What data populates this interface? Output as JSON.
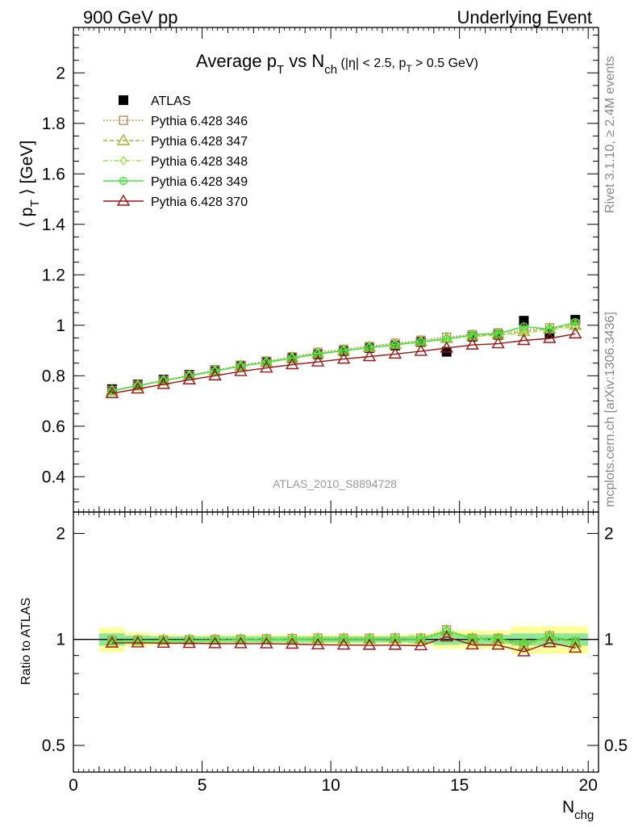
{
  "header": {
    "left": "900 GeV pp",
    "right": "Underlying Event"
  },
  "side_labels": {
    "rivet": "Rivet 3.1.10, ≥ 2.4M events",
    "source": "mcplots.cern.ch [arXiv:1306.3436]"
  },
  "chart_data": [
    {
      "type": "line",
      "panel": "main",
      "title": {
        "prefix": "Average p",
        "sub1": "T",
        "mid": " vs N",
        "sub2": "ch",
        "cut_open": " (|η| < 2.5, p",
        "cut_sub": "T",
        "cut_close": " > 0.5 GeV)"
      },
      "ylabel": {
        "left": "⟨ p",
        "sub": "T",
        "right": " ⟩ [GeV]"
      },
      "xlim": [
        0,
        20.4
      ],
      "ylim": [
        0.26,
        2.18
      ],
      "yticks": [
        0.4,
        0.6,
        0.8,
        1,
        1.2,
        1.4,
        1.6,
        1.8,
        2
      ],
      "ytick_labels": [
        "0.4",
        "0.6",
        "0.8",
        "1",
        "1.2",
        "1.4",
        "1.6",
        "1.8",
        "2"
      ],
      "watermark": "ATLAS_2010_S8894728",
      "legend_position": "top-left",
      "x": [
        1.5,
        2.5,
        3.5,
        4.5,
        5.5,
        6.5,
        7.5,
        8.5,
        9.5,
        10.5,
        11.5,
        12.5,
        13.5,
        14.5,
        15.5,
        16.5,
        17.5,
        18.5,
        19.5
      ],
      "series": [
        {
          "name": "ATLAS",
          "marker": "filled-square",
          "line": "none",
          "color": "#000000",
          "values": [
            0.747,
            0.765,
            0.785,
            0.804,
            0.822,
            0.84,
            0.855,
            0.87,
            0.885,
            0.898,
            0.91,
            0.92,
            0.934,
            0.895,
            0.955,
            0.962,
            1.018,
            0.968,
            1.022
          ]
        },
        {
          "name": "Pythia 6.428 346",
          "marker": "open-square",
          "line": "dotted",
          "color": "#b8884e",
          "values": [
            0.742,
            0.762,
            0.782,
            0.802,
            0.822,
            0.842,
            0.858,
            0.875,
            0.893,
            0.905,
            0.917,
            0.929,
            0.941,
            0.953,
            0.963,
            0.97,
            0.982,
            0.99,
            1.005
          ]
        },
        {
          "name": "Pythia 6.428 347",
          "marker": "open-triangle",
          "line": "dashed",
          "color": "#a4b627",
          "values": [
            0.74,
            0.76,
            0.78,
            0.8,
            0.819,
            0.838,
            0.854,
            0.871,
            0.888,
            0.9,
            0.912,
            0.924,
            0.936,
            0.948,
            0.958,
            0.964,
            0.975,
            0.986,
            1.0
          ]
        },
        {
          "name": "Pythia 6.428 348",
          "marker": "open-diamond",
          "line": "dashdot",
          "color": "#9be34d",
          "values": [
            0.741,
            0.761,
            0.781,
            0.8,
            0.82,
            0.839,
            0.855,
            0.872,
            0.889,
            0.901,
            0.913,
            0.924,
            0.936,
            0.947,
            0.955,
            0.96,
            0.97,
            0.98,
            0.995
          ]
        },
        {
          "name": "Pythia 6.428 349",
          "marker": "open-circle-cross",
          "line": "solid",
          "color": "#3fe23c",
          "values": [
            0.74,
            0.76,
            0.78,
            0.799,
            0.818,
            0.838,
            0.853,
            0.869,
            0.886,
            0.899,
            0.911,
            0.922,
            0.934,
            0.945,
            0.962,
            0.967,
            0.995,
            0.985,
            1.012
          ]
        },
        {
          "name": "Pythia 6.428 370",
          "marker": "open-triangle",
          "line": "solid",
          "color": "#9b1414",
          "values": [
            0.73,
            0.748,
            0.766,
            0.784,
            0.8,
            0.817,
            0.831,
            0.844,
            0.855,
            0.866,
            0.876,
            0.886,
            0.897,
            0.91,
            0.922,
            0.927,
            0.94,
            0.948,
            0.966
          ]
        }
      ]
    },
    {
      "type": "line",
      "panel": "ratio",
      "ylabel": "Ratio to ATLAS",
      "xlabel": {
        "main": "N",
        "sub": "chg"
      },
      "scale": "log",
      "xlim": [
        0,
        20.4
      ],
      "ylim": [
        0.42,
        2.3
      ],
      "yticks": [
        0.5,
        1,
        2
      ],
      "ytick_labels": [
        "0.5",
        "1",
        "2"
      ],
      "xticks": [
        0,
        5,
        10,
        15,
        20
      ],
      "xtick_labels": [
        "0",
        "5",
        "10",
        "15",
        "20"
      ],
      "reference_line": 1,
      "band_x_edges": [
        1,
        2,
        3,
        4,
        5,
        6,
        7,
        8,
        9,
        10,
        11,
        12,
        13,
        14,
        15,
        16,
        17,
        18,
        19,
        20
      ],
      "band_inner": [
        0.04,
        0.025,
        0.02,
        0.02,
        0.02,
        0.02,
        0.02,
        0.02,
        0.02,
        0.02,
        0.02,
        0.02,
        0.025,
        0.035,
        0.03,
        0.03,
        0.04,
        0.04,
        0.04
      ],
      "band_outer": [
        0.08,
        0.045,
        0.035,
        0.03,
        0.03,
        0.03,
        0.03,
        0.03,
        0.03,
        0.03,
        0.03,
        0.03,
        0.04,
        0.06,
        0.06,
        0.06,
        0.09,
        0.09,
        0.09
      ],
      "band_inner_color": "#8ee89a",
      "band_outer_color": "#ffff99",
      "x": [
        1.5,
        2.5,
        3.5,
        4.5,
        5.5,
        6.5,
        7.5,
        8.5,
        9.5,
        10.5,
        11.5,
        12.5,
        13.5,
        14.5,
        15.5,
        16.5,
        17.5,
        18.5,
        19.5
      ],
      "series": [
        {
          "name": "Pythia 6.428 346",
          "marker": "open-square",
          "line": "dotted",
          "color": "#b8884e",
          "values": [
            0.993,
            0.996,
            0.996,
            0.998,
            1.0,
            1.002,
            1.004,
            1.006,
            1.009,
            1.008,
            1.008,
            1.01,
            1.008,
            1.065,
            1.008,
            1.008,
            0.965,
            1.023,
            0.983
          ]
        },
        {
          "name": "Pythia 6.428 347",
          "marker": "open-triangle",
          "line": "dashed",
          "color": "#a4b627",
          "values": [
            0.991,
            0.993,
            0.994,
            0.995,
            0.996,
            0.998,
            0.999,
            1.001,
            1.003,
            1.002,
            1.002,
            1.004,
            1.002,
            1.059,
            1.003,
            1.002,
            0.958,
            1.019,
            0.978
          ]
        },
        {
          "name": "Pythia 6.428 348",
          "marker": "open-diamond",
          "line": "dashdot",
          "color": "#9be34d",
          "values": [
            0.992,
            0.995,
            0.995,
            0.995,
            0.998,
            0.999,
            1.0,
            1.002,
            1.005,
            1.003,
            1.003,
            1.004,
            1.002,
            1.058,
            1.0,
            0.998,
            0.953,
            1.012,
            0.974
          ]
        },
        {
          "name": "Pythia 6.428 349",
          "marker": "open-circle-cross",
          "line": "solid",
          "color": "#3fe23c",
          "values": [
            0.991,
            0.993,
            0.994,
            0.994,
            0.995,
            0.998,
            0.998,
            0.999,
            1.001,
            1.001,
            1.001,
            1.002,
            1.0,
            1.056,
            1.007,
            1.005,
            0.977,
            1.018,
            0.99
          ]
        },
        {
          "name": "Pythia 6.428 370",
          "marker": "open-triangle",
          "line": "solid",
          "color": "#9b1414",
          "values": [
            0.977,
            0.978,
            0.976,
            0.975,
            0.973,
            0.973,
            0.972,
            0.97,
            0.966,
            0.964,
            0.963,
            0.963,
            0.96,
            1.017,
            0.965,
            0.964,
            0.923,
            0.979,
            0.945
          ]
        }
      ]
    }
  ]
}
